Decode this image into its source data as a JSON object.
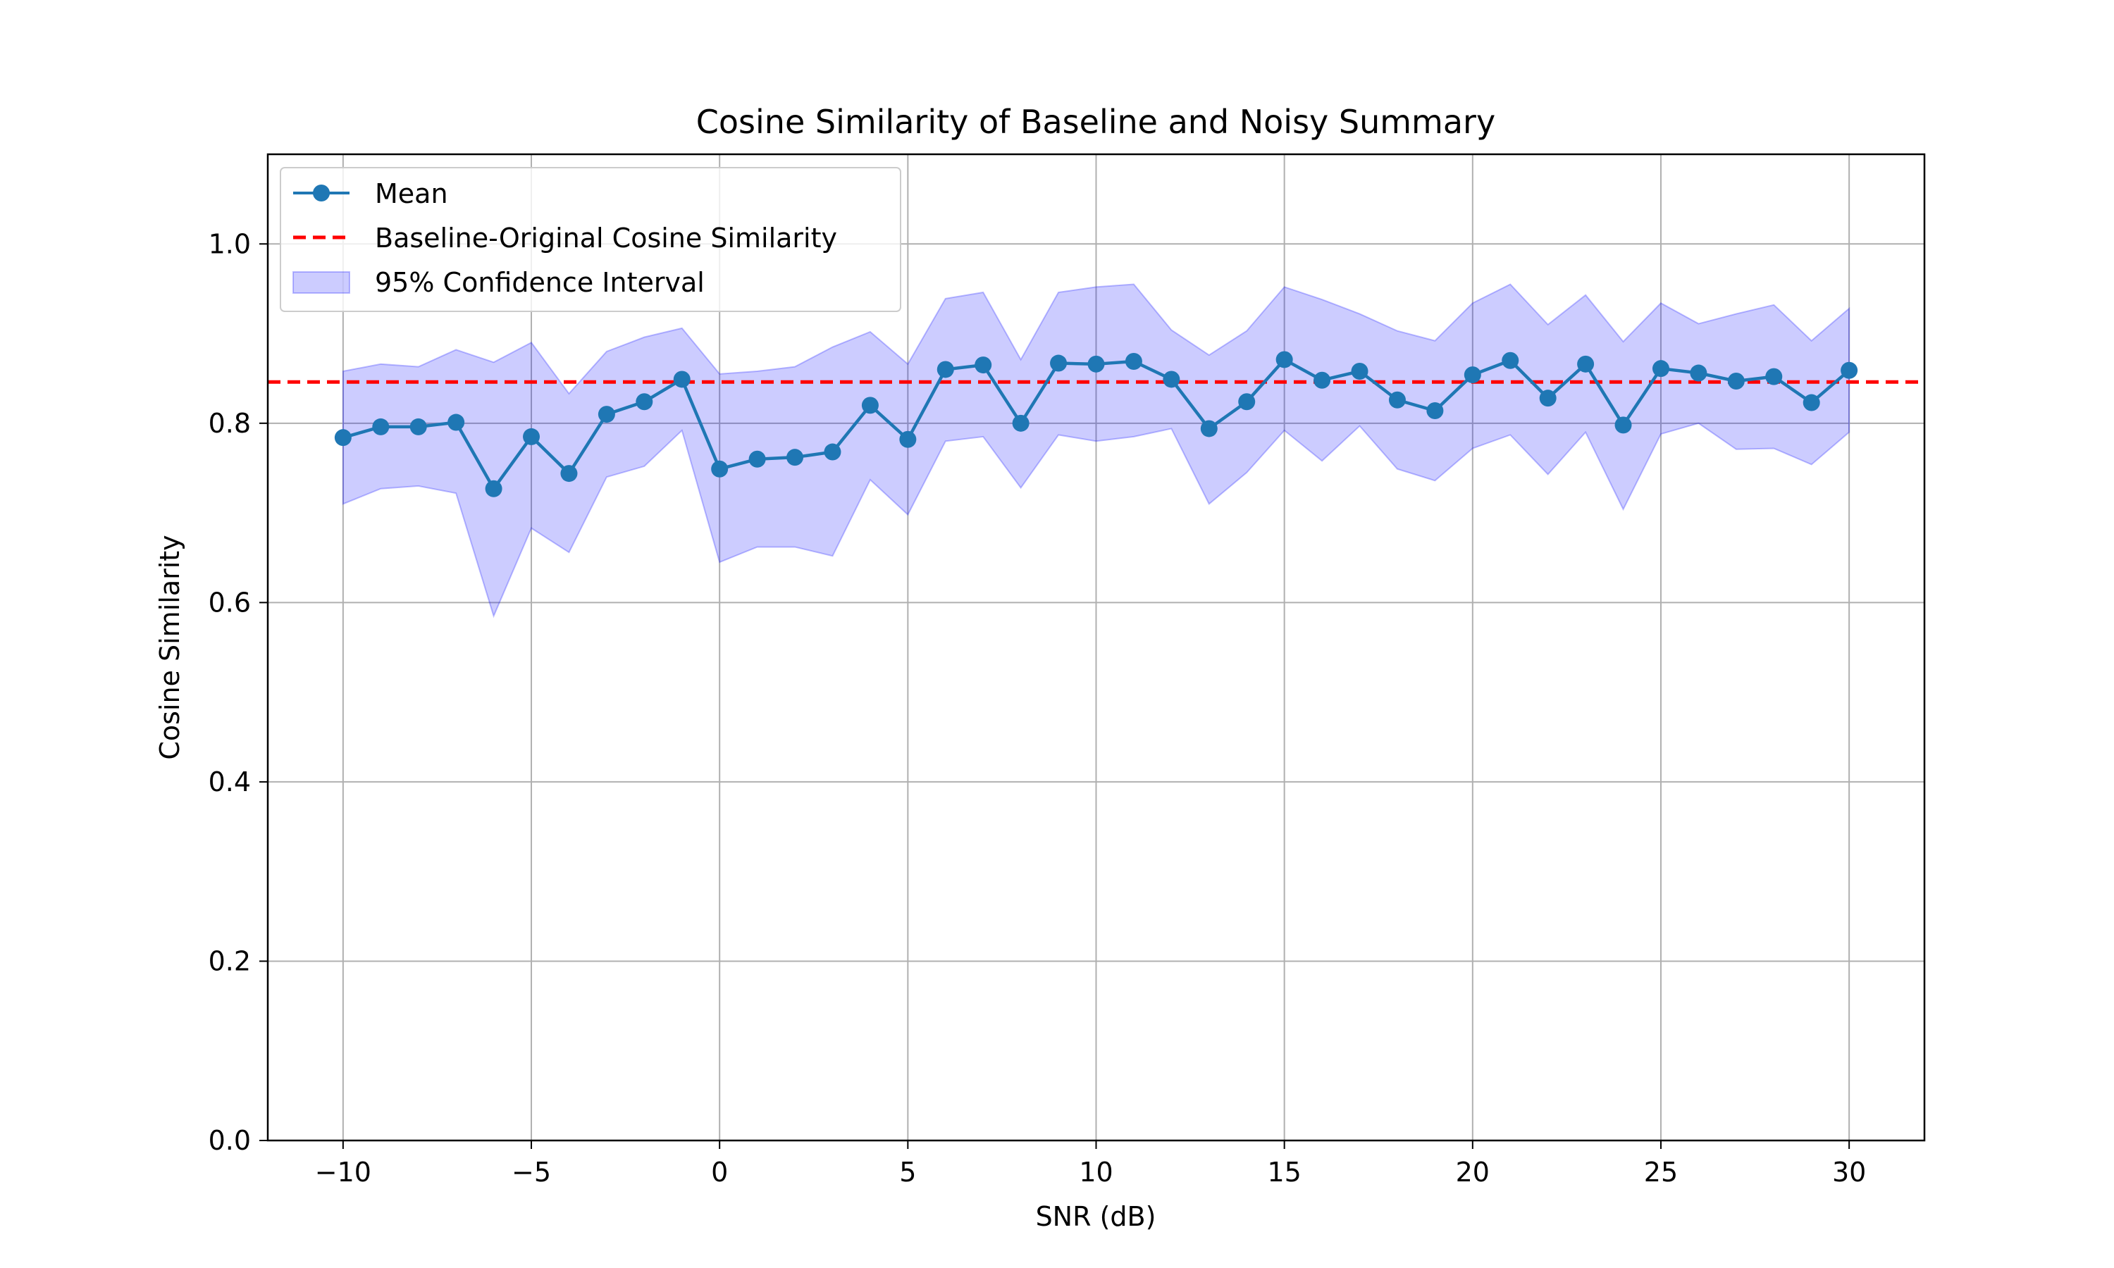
{
  "chart_data": {
    "type": "line",
    "title": "Cosine Similarity of Baseline and Noisy Summary",
    "xlabel": "SNR (dB)",
    "ylabel": "Cosine Similarity",
    "xlim": [
      -12,
      32
    ],
    "ylim": [
      0.0,
      1.1
    ],
    "grid": true,
    "legend_position": "top-left",
    "x_ticks": [
      -10,
      -5,
      0,
      5,
      10,
      15,
      20,
      25,
      30
    ],
    "x_tick_labels": [
      "−10",
      "−5",
      "0",
      "5",
      "10",
      "15",
      "20",
      "25",
      "30"
    ],
    "y_ticks": [
      0.0,
      0.2,
      0.4,
      0.6,
      0.8,
      1.0
    ],
    "y_tick_labels": [
      "0.0",
      "0.2",
      "0.4",
      "0.6",
      "0.8",
      "1.0"
    ],
    "x": [
      -10,
      -9,
      -8,
      -7,
      -6,
      -5,
      -4,
      -3,
      -2,
      -1,
      0,
      1,
      2,
      3,
      4,
      5,
      6,
      7,
      8,
      9,
      10,
      11,
      12,
      13,
      14,
      15,
      16,
      17,
      18,
      19,
      20,
      21,
      22,
      23,
      24,
      25,
      26,
      27,
      28,
      29,
      30
    ],
    "series": [
      {
        "name": "Mean",
        "color": "#1f77b4",
        "values": [
          0.784,
          0.796,
          0.796,
          0.801,
          0.727,
          0.785,
          0.744,
          0.81,
          0.824,
          0.849,
          0.749,
          0.76,
          0.762,
          0.768,
          0.82,
          0.782,
          0.86,
          0.865,
          0.8,
          0.867,
          0.866,
          0.869,
          0.849,
          0.794,
          0.824,
          0.871,
          0.848,
          0.858,
          0.826,
          0.814,
          0.854,
          0.87,
          0.828,
          0.866,
          0.798,
          0.861,
          0.856,
          0.847,
          0.852,
          0.823,
          0.859
        ]
      }
    ],
    "baseline": {
      "name": "Baseline-Original Cosine Similarity",
      "value": 0.846,
      "color": "#ff0000"
    },
    "confidence_interval": {
      "name": "95% Confidence Interval",
      "color": "#0000ff",
      "lower": [
        0.71,
        0.727,
        0.73,
        0.722,
        0.585,
        0.683,
        0.656,
        0.74,
        0.752,
        0.792,
        0.645,
        0.662,
        0.662,
        0.652,
        0.737,
        0.698,
        0.78,
        0.785,
        0.728,
        0.787,
        0.78,
        0.785,
        0.794,
        0.71,
        0.745,
        0.792,
        0.758,
        0.797,
        0.749,
        0.736,
        0.772,
        0.787,
        0.743,
        0.79,
        0.704,
        0.788,
        0.8,
        0.771,
        0.772,
        0.754,
        0.79
      ],
      "upper": [
        0.858,
        0.866,
        0.863,
        0.882,
        0.868,
        0.89,
        0.833,
        0.88,
        0.896,
        0.906,
        0.855,
        0.858,
        0.863,
        0.885,
        0.902,
        0.866,
        0.939,
        0.946,
        0.871,
        0.946,
        0.952,
        0.955,
        0.904,
        0.876,
        0.903,
        0.952,
        0.938,
        0.922,
        0.903,
        0.892,
        0.934,
        0.955,
        0.91,
        0.943,
        0.891,
        0.934,
        0.911,
        0.922,
        0.932,
        0.892,
        0.928
      ]
    }
  }
}
